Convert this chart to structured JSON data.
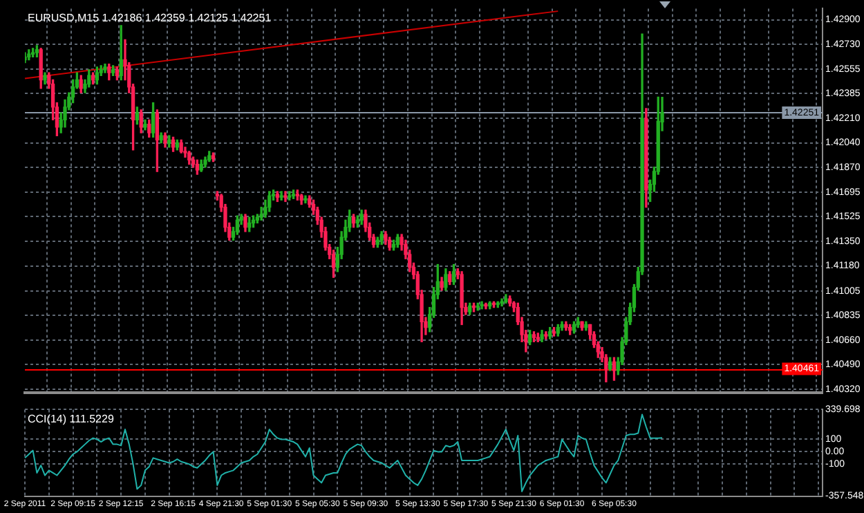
{
  "chart_data": [
    {
      "type": "candlestick",
      "title": "EURUSD,M15 1.42186 1.42359 1.42125 1.42251",
      "categories": [
        null,
        null,
        null,
        null,
        null,
        null,
        null,
        null,
        null,
        null,
        null,
        null,
        null,
        null,
        null,
        null,
        null,
        null,
        null,
        null,
        null,
        null,
        null,
        null,
        null,
        null,
        null,
        null,
        null,
        null,
        null,
        null,
        null,
        null,
        null,
        null,
        null,
        null,
        null,
        null,
        null,
        null,
        null,
        null,
        null,
        null,
        null,
        null,
        null,
        null,
        null,
        null,
        null,
        null,
        null,
        null,
        null,
        null,
        null,
        null,
        null,
        null,
        null,
        null,
        null,
        null,
        null,
        null,
        null,
        null,
        null,
        null,
        null,
        null,
        null,
        null,
        null,
        null,
        null,
        null,
        null,
        null,
        null,
        null,
        null,
        null,
        null,
        null,
        null,
        null,
        null,
        null,
        null,
        null,
        null,
        null,
        null,
        null,
        null,
        null,
        null,
        null,
        null,
        null,
        null,
        null,
        null,
        null,
        null,
        null,
        null,
        null,
        null,
        null,
        null,
        null,
        null,
        null,
        null,
        null,
        null,
        null,
        null,
        null,
        null,
        null,
        null,
        null,
        null,
        null,
        null,
        null,
        null,
        null,
        null,
        null,
        null,
        null,
        null,
        null,
        null,
        null,
        null,
        null,
        null,
        null,
        null,
        null,
        null,
        null,
        null,
        null,
        null,
        null,
        null,
        null,
        null,
        null,
        null,
        null,
        null,
        null,
        null,
        null,
        null,
        null,
        null,
        null,
        null,
        null,
        null,
        null,
        null,
        null,
        null,
        null,
        null,
        null,
        null,
        null,
        null,
        null,
        null,
        null,
        null,
        null,
        null,
        null,
        null,
        null,
        null,
        null,
        null,
        null,
        null,
        null,
        null,
        null,
        null,
        null
      ],
      "ohlc": [
        [
          1.4262,
          1.4267,
          1.426,
          1.4264
        ],
        [
          1.4264,
          1.4269,
          1.4262,
          1.4266
        ],
        [
          1.4266,
          1.427,
          1.4264,
          1.4267
        ],
        [
          1.4267,
          1.4272,
          1.4264,
          1.4269
        ],
        [
          1.4269,
          1.427,
          1.4242,
          1.4248
        ],
        [
          1.4248,
          1.4253,
          1.4245,
          1.4251
        ],
        [
          1.4251,
          1.4253,
          1.4242,
          1.4245
        ],
        [
          1.4245,
          1.4248,
          1.422,
          1.4229
        ],
        [
          1.4229,
          1.4232,
          1.4209,
          1.4215
        ],
        [
          1.4215,
          1.4225,
          1.4211,
          1.422
        ],
        [
          1.422,
          1.4234,
          1.4215,
          1.4229
        ],
        [
          1.4229,
          1.4239,
          1.4227,
          1.4236
        ],
        [
          1.4236,
          1.4248,
          1.4232,
          1.4243
        ],
        [
          1.4243,
          1.4253,
          1.4242,
          1.4248
        ],
        [
          1.4248,
          1.4251,
          1.4239,
          1.4242
        ],
        [
          1.4242,
          1.4248,
          1.4239,
          1.4245
        ],
        [
          1.4245,
          1.4255,
          1.4243,
          1.4251
        ],
        [
          1.4251,
          1.4253,
          1.4245,
          1.4248
        ],
        [
          1.4248,
          1.4257,
          1.4245,
          1.4253
        ],
        [
          1.4253,
          1.4258,
          1.4251,
          1.4255
        ],
        [
          1.4255,
          1.4259,
          1.4253,
          1.4257
        ],
        [
          1.4257,
          1.4259,
          1.4248,
          1.4253
        ],
        [
          1.4253,
          1.4258,
          1.4251,
          1.4255
        ],
        [
          1.4255,
          1.4257,
          1.4248,
          1.4251
        ],
        [
          1.4251,
          1.4286,
          1.4248,
          1.4262
        ],
        [
          1.4262,
          1.4276,
          1.4248,
          1.4258
        ],
        [
          1.4258,
          1.426,
          1.4239,
          1.4243
        ],
        [
          1.4243,
          1.4245,
          1.4199,
          1.422
        ],
        [
          1.422,
          1.4229,
          1.4217,
          1.4225
        ],
        [
          1.4225,
          1.4227,
          1.4211,
          1.4215
        ],
        [
          1.4215,
          1.422,
          1.4213,
          1.4217
        ],
        [
          1.4217,
          1.422,
          1.4208,
          1.4211
        ],
        [
          1.4211,
          1.4232,
          1.4208,
          1.4225
        ],
        [
          1.4225,
          1.4227,
          1.4184,
          1.4206
        ],
        [
          1.4206,
          1.4211,
          1.4204,
          1.4209
        ],
        [
          1.4209,
          1.4211,
          1.4201,
          1.4204
        ],
        [
          1.4204,
          1.4209,
          1.4201,
          1.4206
        ],
        [
          1.4206,
          1.4208,
          1.4198,
          1.4201
        ],
        [
          1.4201,
          1.4206,
          1.4199,
          1.4204
        ],
        [
          1.4204,
          1.4206,
          1.4197,
          1.4198
        ],
        [
          1.4198,
          1.4201,
          1.4194,
          1.4197
        ],
        [
          1.4197,
          1.4198,
          1.4189,
          1.4192
        ],
        [
          1.4192,
          1.4194,
          1.4187,
          1.4189
        ],
        [
          1.4189,
          1.4192,
          1.4182,
          1.4185
        ],
        [
          1.4185,
          1.4192,
          1.4184,
          1.4189
        ],
        [
          1.4189,
          1.4194,
          1.4187,
          1.4192
        ],
        [
          1.4192,
          1.4198,
          1.4191,
          1.4195
        ],
        [
          1.4195,
          1.4197,
          1.4191,
          1.4193
        ],
        [
          1.4168,
          1.417,
          1.4164,
          1.4167
        ],
        [
          1.4167,
          1.4168,
          1.4156,
          1.4159
        ],
        [
          1.4159,
          1.4161,
          1.4142,
          1.4145
        ],
        [
          1.4145,
          1.4148,
          1.4136,
          1.4138
        ],
        [
          1.4138,
          1.4145,
          1.4136,
          1.4142
        ],
        [
          1.4142,
          1.4153,
          1.414,
          1.415
        ],
        [
          1.415,
          1.4154,
          1.4147,
          1.4152
        ],
        [
          1.4152,
          1.4154,
          1.4142,
          1.4145
        ],
        [
          1.4145,
          1.4152,
          1.4142,
          1.4148
        ],
        [
          1.4148,
          1.4153,
          1.4145,
          1.415
        ],
        [
          1.415,
          1.4154,
          1.4148,
          1.4152
        ],
        [
          1.4152,
          1.4159,
          1.415,
          1.4154
        ],
        [
          1.4154,
          1.4164,
          1.4152,
          1.4159
        ],
        [
          1.4159,
          1.417,
          1.4156,
          1.4167
        ],
        [
          1.4167,
          1.4171,
          1.4164,
          1.4168
        ],
        [
          1.4168,
          1.417,
          1.4163,
          1.4166
        ],
        [
          1.4166,
          1.417,
          1.4164,
          1.4167
        ],
        [
          1.4167,
          1.417,
          1.4163,
          1.4166
        ],
        [
          1.4166,
          1.417,
          1.4164,
          1.4167
        ],
        [
          1.4167,
          1.4171,
          1.4165,
          1.4168
        ],
        [
          1.4168,
          1.4171,
          1.4164,
          1.4167
        ],
        [
          1.4167,
          1.4168,
          1.4161,
          1.4164
        ],
        [
          1.4164,
          1.4167,
          1.4162,
          1.4165
        ],
        [
          1.4165,
          1.4167,
          1.4159,
          1.4161
        ],
        [
          1.4161,
          1.4164,
          1.4154,
          1.4157
        ],
        [
          1.4157,
          1.4159,
          1.4147,
          1.415
        ],
        [
          1.415,
          1.4152,
          1.4138,
          1.4142
        ],
        [
          1.4142,
          1.4145,
          1.4129,
          1.4131
        ],
        [
          1.4131,
          1.4133,
          1.4123,
          1.4126
        ],
        [
          1.4126,
          1.4129,
          1.411,
          1.4117
        ],
        [
          1.4117,
          1.4131,
          1.4114,
          1.4126
        ],
        [
          1.4126,
          1.4142,
          1.4123,
          1.4138
        ],
        [
          1.4138,
          1.415,
          1.4136,
          1.4145
        ],
        [
          1.4145,
          1.4157,
          1.4142,
          1.4152
        ],
        [
          1.4152,
          1.4154,
          1.4145,
          1.4148
        ],
        [
          1.4148,
          1.4153,
          1.4145,
          1.415
        ],
        [
          1.415,
          1.4157,
          1.4147,
          1.4154
        ],
        [
          1.4154,
          1.4157,
          1.4142,
          1.4145
        ],
        [
          1.4145,
          1.4148,
          1.4136,
          1.4138
        ],
        [
          1.4138,
          1.414,
          1.4131,
          1.4133
        ],
        [
          1.4133,
          1.4138,
          1.4131,
          1.4136
        ],
        [
          1.4136,
          1.4142,
          1.4133,
          1.414
        ],
        [
          1.414,
          1.4142,
          1.4133,
          1.4136
        ],
        [
          1.4136,
          1.4138,
          1.4129,
          1.4131
        ],
        [
          1.4131,
          1.4136,
          1.4129,
          1.4133
        ],
        [
          1.4133,
          1.414,
          1.4131,
          1.4138
        ],
        [
          1.4138,
          1.414,
          1.4129,
          1.4133
        ],
        [
          1.4133,
          1.4136,
          1.4123,
          1.4126
        ],
        [
          1.4126,
          1.4129,
          1.4114,
          1.4117
        ],
        [
          1.4117,
          1.412,
          1.4109,
          1.4112
        ],
        [
          1.4112,
          1.4114,
          1.4095,
          1.4098
        ],
        [
          1.4098,
          1.4101,
          1.4065,
          1.4079
        ],
        [
          1.4079,
          1.4082,
          1.407,
          1.4075
        ],
        [
          1.4075,
          1.4089,
          1.4072,
          1.4084
        ],
        [
          1.4084,
          1.4103,
          1.4082,
          1.4098
        ],
        [
          1.4098,
          1.4119,
          1.4095,
          1.4107
        ],
        [
          1.4107,
          1.411,
          1.4101,
          1.4103
        ],
        [
          1.4103,
          1.4116,
          1.4101,
          1.4112
        ],
        [
          1.4112,
          1.4114,
          1.4105,
          1.4107
        ],
        [
          1.4107,
          1.4119,
          1.4105,
          1.4114
        ],
        [
          1.4114,
          1.4116,
          1.4109,
          1.4112
        ],
        [
          1.4112,
          1.4114,
          1.4077,
          1.4089
        ],
        [
          1.4089,
          1.4092,
          1.4084,
          1.4086
        ],
        [
          1.4086,
          1.4092,
          1.4084,
          1.409
        ],
        [
          1.409,
          1.4092,
          1.4086,
          1.4089
        ],
        [
          1.4089,
          1.4092,
          1.4087,
          1.409
        ],
        [
          1.409,
          1.4093,
          1.4088,
          1.4091
        ],
        [
          1.4091,
          1.4092,
          1.4088,
          1.409
        ],
        [
          1.409,
          1.4093,
          1.4088,
          1.4092
        ],
        [
          1.4092,
          1.4093,
          1.4089,
          1.4091
        ],
        [
          1.4091,
          1.4093,
          1.4089,
          1.4092
        ],
        [
          1.4092,
          1.4095,
          1.409,
          1.4093
        ],
        [
          1.4093,
          1.4098,
          1.4092,
          1.4095
        ],
        [
          1.4095,
          1.4097,
          1.409,
          1.4092
        ],
        [
          1.4092,
          1.4093,
          1.4086,
          1.4089
        ],
        [
          1.4089,
          1.4092,
          1.4077,
          1.4079
        ],
        [
          1.4079,
          1.4082,
          1.4065,
          1.407
        ],
        [
          1.407,
          1.4073,
          1.4058,
          1.4065
        ],
        [
          1.4065,
          1.4073,
          1.4063,
          1.407
        ],
        [
          1.407,
          1.4072,
          1.4065,
          1.4068
        ],
        [
          1.4068,
          1.4071,
          1.4065,
          1.4067
        ],
        [
          1.4067,
          1.4073,
          1.4065,
          1.407
        ],
        [
          1.407,
          1.4072,
          1.4067,
          1.4069
        ],
        [
          1.4069,
          1.4075,
          1.4067,
          1.4072
        ],
        [
          1.4072,
          1.4075,
          1.4069,
          1.4071
        ],
        [
          1.4071,
          1.4077,
          1.4069,
          1.4075
        ],
        [
          1.4075,
          1.4079,
          1.4073,
          1.4077
        ],
        [
          1.4077,
          1.4079,
          1.4073,
          1.4075
        ],
        [
          1.4075,
          1.4077,
          1.407,
          1.4073
        ],
        [
          1.4073,
          1.4079,
          1.4071,
          1.4077
        ],
        [
          1.4077,
          1.4082,
          1.4075,
          1.4079
        ],
        [
          1.4079,
          1.4079,
          1.4073,
          1.4075
        ],
        [
          1.4075,
          1.4079,
          1.4073,
          1.4077
        ],
        [
          1.4077,
          1.4077,
          1.4067,
          1.407
        ],
        [
          1.407,
          1.4072,
          1.4061,
          1.4063
        ],
        [
          1.4063,
          1.4065,
          1.4054,
          1.4058
        ],
        [
          1.4058,
          1.4061,
          1.4051,
          1.4054
        ],
        [
          1.4054,
          1.4056,
          1.4037,
          1.4046
        ],
        [
          1.4046,
          1.4054,
          1.4045,
          1.4051
        ],
        [
          1.4051,
          1.4054,
          1.4038,
          1.4045
        ],
        [
          1.4045,
          1.4054,
          1.4042,
          1.4051
        ],
        [
          1.4051,
          1.4068,
          1.4049,
          1.4065
        ],
        [
          1.4065,
          1.4082,
          1.4063,
          1.4079
        ],
        [
          1.4079,
          1.4092,
          1.4077,
          1.4089
        ],
        [
          1.4089,
          1.4105,
          1.4086,
          1.4103
        ],
        [
          1.4103,
          1.4117,
          1.4101,
          1.4114
        ],
        [
          1.4114,
          1.428,
          1.4112,
          1.4221
        ],
        [
          1.4221,
          1.4228,
          1.4159,
          1.4171
        ],
        [
          1.4171,
          1.4178,
          1.4163,
          1.4175
        ],
        [
          1.4175,
          1.4187,
          1.417,
          1.4184
        ],
        [
          1.4184,
          1.4236,
          1.4182,
          1.4219
        ],
        [
          1.42186,
          1.42359,
          1.42125,
          1.42251
        ],
        null,
        null,
        null,
        null,
        null,
        null,
        null,
        null,
        null,
        null,
        null,
        null,
        null,
        null,
        null,
        null,
        null,
        null,
        null,
        null,
        null,
        null,
        null,
        null,
        null,
        null,
        null,
        null,
        null,
        null,
        null,
        null,
        null,
        null,
        null,
        null,
        null,
        null,
        null,
        null
      ],
      "colors": [
        "#22b022",
        "#22b022",
        "#22b022",
        "#22b022",
        "#ff1f55",
        "#22b022",
        "#ff1f55",
        "#ff1f55",
        "#ff1f55",
        "#22b022",
        "#22b022",
        "#22b022",
        "#22b022",
        "#22b022",
        "#ff1f55",
        "#22b022",
        "#22b022",
        "#ff1f55",
        "#22b022",
        "#22b022",
        "#22b022",
        "#ff1f55",
        "#22b022",
        "#ff1f55",
        "#22b022",
        "#ff1f55",
        "#ff1f55",
        "#ff1f55",
        "#22b022",
        "#ff1f55",
        "#22b022",
        "#ff1f55",
        "#22b022",
        "#ff1f55",
        "#22b022",
        "#ff1f55",
        "#22b022",
        "#ff1f55",
        "#22b022",
        "#ff1f55",
        "#ff1f55",
        "#ff1f55",
        "#ff1f55",
        "#ff1f55",
        "#22b022",
        "#22b022",
        "#22b022",
        "#ff1f55",
        "#ff1f55",
        "#ff1f55",
        "#ff1f55",
        "#ff1f55",
        "#22b022",
        "#22b022",
        "#22b022",
        "#ff1f55",
        "#22b022",
        "#22b022",
        "#22b022",
        "#22b022",
        "#22b022",
        "#22b022",
        "#22b022",
        "#ff1f55",
        "#22b022",
        "#ff1f55",
        "#22b022",
        "#22b022",
        "#ff1f55",
        "#ff1f55",
        "#22b022",
        "#ff1f55",
        "#ff1f55",
        "#ff1f55",
        "#ff1f55",
        "#ff1f55",
        "#ff1f55",
        "#ff1f55",
        "#22b022",
        "#22b022",
        "#22b022",
        "#22b022",
        "#ff1f55",
        "#22b022",
        "#22b022",
        "#ff1f55",
        "#ff1f55",
        "#ff1f55",
        "#22b022",
        "#22b022",
        "#ff1f55",
        "#ff1f55",
        "#22b022",
        "#22b022",
        "#ff1f55",
        "#ff1f55",
        "#ff1f55",
        "#ff1f55",
        "#ff1f55",
        "#ff1f55",
        "#ff1f55",
        "#22b022",
        "#22b022",
        "#22b022",
        "#ff1f55",
        "#22b022",
        "#ff1f55",
        "#22b022",
        "#ff1f55",
        "#ff1f55",
        "#ff1f55",
        "#22b022",
        "#ff1f55",
        "#22b022",
        "#22b022",
        "#ff1f55",
        "#22b022",
        "#ff1f55",
        "#22b022",
        "#22b022",
        "#22b022",
        "#ff1f55",
        "#ff1f55",
        "#ff1f55",
        "#ff1f55",
        "#ff1f55",
        "#22b022",
        "#ff1f55",
        "#ff1f55",
        "#22b022",
        "#ff1f55",
        "#22b022",
        "#ff1f55",
        "#22b022",
        "#22b022",
        "#ff1f55",
        "#ff1f55",
        "#22b022",
        "#22b022",
        "#ff1f55",
        "#22b022",
        "#ff1f55",
        "#ff1f55",
        "#ff1f55",
        "#ff1f55",
        "#ff1f55",
        "#22b022",
        "#ff1f55",
        "#22b022",
        "#22b022",
        "#22b022",
        "#22b022",
        "#22b022",
        "#22b022",
        "#22b022",
        "#ff1f55",
        "#22b022",
        "#22b022",
        "#22b022",
        "#22b022",
        null,
        null,
        null,
        null,
        null,
        null,
        null,
        null,
        null,
        null,
        null,
        null,
        null,
        null,
        null,
        null,
        null,
        null,
        null,
        null,
        null,
        null,
        null,
        null,
        null,
        null,
        null,
        null,
        null,
        null,
        null,
        null,
        null,
        null,
        null,
        null,
        null,
        null,
        null,
        null
      ],
      "series": [
        {
          "type": "line",
          "color": "#c80000",
          "values": [
            1.4249,
            null,
            null,
            null,
            null,
            null,
            null,
            null,
            null,
            null,
            null,
            null,
            null,
            null,
            null,
            null,
            null,
            null,
            null,
            null,
            null,
            null,
            null,
            null,
            null,
            null,
            null,
            null,
            null,
            null,
            null,
            null,
            null,
            null,
            null,
            null,
            null,
            null,
            null,
            null,
            null,
            null,
            null,
            null,
            null,
            null,
            null,
            null,
            null,
            null,
            null,
            null,
            null,
            null,
            null,
            null,
            null,
            null,
            null,
            null,
            null,
            null,
            null,
            null,
            null,
            null,
            null,
            null,
            null,
            null,
            null,
            null,
            null,
            null,
            null,
            null,
            null,
            null,
            null,
            null,
            null,
            null,
            null,
            null,
            null,
            null,
            null,
            null,
            null,
            null,
            null,
            null,
            null,
            null,
            null,
            null,
            null,
            null,
            null,
            null,
            null,
            null,
            null,
            null,
            null,
            null,
            null,
            null,
            null,
            null,
            null,
            null,
            null,
            null,
            null,
            null,
            null,
            null,
            null,
            null,
            null,
            null,
            null,
            null,
            null,
            null,
            null,
            null,
            null,
            null,
            null,
            null,
            null,
            1.4296,
            null,
            null,
            null,
            null,
            null,
            null,
            null,
            null,
            null,
            null,
            null,
            null,
            null,
            null,
            null,
            null,
            null,
            null,
            null,
            null,
            null,
            null,
            null,
            null,
            null,
            null,
            null,
            null,
            null,
            null,
            null,
            null,
            null,
            null,
            null,
            null,
            null,
            null,
            null,
            null,
            null,
            null,
            null,
            null,
            null,
            null,
            null,
            null,
            null,
            null,
            null,
            null,
            null,
            null,
            null,
            null,
            null,
            null,
            null,
            null,
            null,
            null,
            null,
            null,
            null,
            null
          ]
        }
      ],
      "ylim": [
        1.40296,
        1.42978
      ],
      "yticks": [
        {
          "value": 1.429,
          "label": "1.42900"
        },
        {
          "value": 1.4273,
          "label": "1.42730"
        },
        {
          "value": 1.42555,
          "label": "1.42555"
        },
        {
          "value": 1.42385,
          "label": "1.42385"
        },
        {
          "value": 1.4221,
          "label": "1.42210"
        },
        {
          "value": 1.4204,
          "label": "1.42040"
        },
        {
          "value": 1.4187,
          "label": "1.41870"
        },
        {
          "value": 1.41695,
          "label": "1.41695"
        },
        {
          "value": 1.41525,
          "label": "1.41525"
        },
        {
          "value": 1.4135,
          "label": "1.41350"
        },
        {
          "value": 1.4118,
          "label": "1.41180"
        },
        {
          "value": 1.41005,
          "label": "1.41005"
        },
        {
          "value": 1.40835,
          "label": "1.40835"
        },
        {
          "value": 1.4066,
          "label": "1.40660"
        },
        {
          "value": 1.4049,
          "label": "1.40490"
        },
        {
          "value": 1.4032,
          "label": "1.40320"
        }
      ],
      "ref_lines": [
        {
          "axis": "y",
          "value": 1.42251,
          "label": "1.42251",
          "color": "#8a98a8"
        },
        {
          "axis": "y",
          "value": 1.40461,
          "label": "1.40461",
          "color": "#ff0000"
        }
      ],
      "grid": true,
      "tick_labels": "y"
    },
    {
      "type": "line",
      "title": "CCI(14) 111.5229",
      "categories": [
        "2 Sep 2011",
        null,
        null,
        null,
        null,
        null,
        null,
        null,
        null,
        null,
        null,
        null,
        "2 Sep 09:15",
        null,
        null,
        null,
        null,
        null,
        null,
        null,
        null,
        null,
        null,
        null,
        "2 Sep 12:15",
        null,
        null,
        null,
        null,
        null,
        null,
        null,
        null,
        null,
        null,
        null,
        null,
        "2 Sep 16:15",
        null,
        null,
        null,
        null,
        null,
        null,
        null,
        null,
        null,
        null,
        null,
        "4 Sep 21:30",
        null,
        null,
        null,
        null,
        null,
        null,
        null,
        null,
        null,
        null,
        null,
        "5 Sep 01:30",
        null,
        null,
        null,
        null,
        null,
        null,
        null,
        null,
        null,
        null,
        null,
        "5 Sep 05:30",
        null,
        null,
        null,
        null,
        null,
        null,
        null,
        null,
        null,
        null,
        null,
        "5 Sep 09:30",
        null,
        null,
        null,
        null,
        null,
        null,
        null,
        null,
        null,
        null,
        null,
        null,
        "5 Sep 13:30",
        null,
        null,
        null,
        null,
        null,
        null,
        null,
        null,
        null,
        null,
        null,
        "5 Sep 17:30",
        null,
        null,
        null,
        null,
        null,
        null,
        null,
        null,
        null,
        null,
        null,
        "5 Sep 21:30",
        null,
        null,
        null,
        null,
        null,
        null,
        null,
        null,
        null,
        null,
        null,
        "6 Sep 01:30",
        null,
        null,
        null,
        null,
        null,
        null,
        null,
        null,
        null,
        null,
        null,
        null,
        "6 Sep 05:30",
        null,
        null,
        null,
        null,
        null,
        null,
        null,
        null,
        null,
        null,
        null,
        null,
        null,
        null,
        null,
        null,
        null,
        null,
        null,
        null,
        null,
        null,
        null,
        null,
        null,
        null,
        null,
        null,
        null,
        null,
        null,
        null,
        null,
        null,
        null,
        null,
        null,
        null,
        null,
        null,
        null,
        null,
        null,
        null,
        null,
        null,
        null,
        null,
        null,
        null,
        null,
        null
      ],
      "color": "#20b2aa",
      "values": [
        -50,
        -20,
        10,
        -170,
        -110,
        -190,
        -150,
        -170,
        -190,
        -150,
        -110,
        -60,
        -20,
        0,
        30,
        60,
        90,
        110,
        100,
        80,
        100,
        110,
        60,
        60,
        50,
        180,
        60,
        -100,
        -300,
        -270,
        -150,
        -120,
        -50,
        -60,
        -70,
        -80,
        -90,
        -80,
        -60,
        -80,
        -90,
        -100,
        -120,
        -130,
        -100,
        -70,
        -30,
        0,
        -270,
        -190,
        -170,
        -160,
        -150,
        -120,
        -90,
        -80,
        -70,
        -40,
        -20,
        30,
        80,
        180,
        140,
        110,
        100,
        100,
        90,
        80,
        60,
        10,
        -40,
        30,
        -190,
        -220,
        -250,
        -190,
        -180,
        -170,
        -170,
        -90,
        -20,
        20,
        40,
        60,
        50,
        0,
        -40,
        -70,
        -80,
        -90,
        -110,
        -130,
        -100,
        -70,
        -130,
        -190,
        -220,
        -250,
        -270,
        -220,
        -150,
        -70,
        10,
        0,
        0,
        50,
        40,
        50,
        80,
        -70,
        -70,
        -70,
        -70,
        -70,
        -60,
        -50,
        -40,
        10,
        60,
        120,
        180,
        90,
        10,
        130,
        -320,
        -250,
        -190,
        -150,
        -110,
        -90,
        -70,
        -60,
        -50,
        -40,
        100,
        50,
        0,
        -40,
        130,
        110,
        100,
        -10,
        -110,
        -160,
        -210,
        -250,
        -180,
        -110,
        -70,
        30,
        130,
        140,
        140,
        150,
        300,
        200,
        110,
        110,
        110,
        111.5229,
        null,
        null,
        null,
        null,
        null,
        null,
        null,
        null,
        null,
        null,
        null,
        null,
        null,
        null,
        null,
        null,
        null,
        null,
        null,
        null,
        null,
        null,
        null,
        null,
        null,
        null,
        null,
        null,
        null,
        null,
        null,
        null,
        null,
        null,
        null,
        null,
        null,
        null,
        null,
        null
      ],
      "ylim": [
        -357.548,
        339.698
      ],
      "yticks": [
        339.698,
        100,
        {
          "value": 0,
          "label": "0.00"
        },
        -100,
        -357.548
      ],
      "grid": true
    }
  ]
}
